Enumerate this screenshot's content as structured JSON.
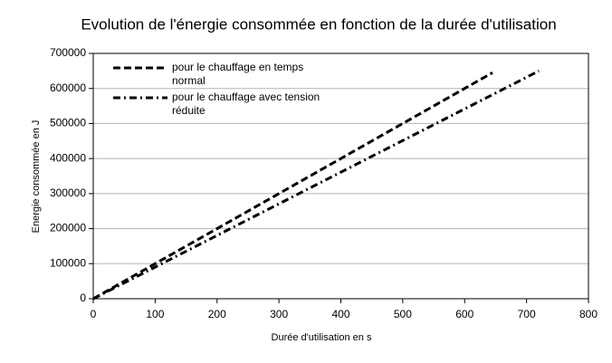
{
  "chart_data": {
    "type": "line",
    "title": "Evolution de l'énergie consommée en fonction de la durée d'utilisation",
    "xlabel": "Durée d'utilisation en s",
    "ylabel": "Energie consommée en J",
    "series": [
      {
        "name": "pour le chauffage en temps normal",
        "color": "#000000",
        "style": "dashed",
        "x": [
          0,
          645
        ],
        "values": [
          0,
          645000
        ]
      },
      {
        "name": "pour le chauffage avec tension réduite",
        "color": "#000000",
        "style": "dashdot",
        "x": [
          0,
          720
        ],
        "values": [
          0,
          650000
        ]
      }
    ],
    "xlim": [
      0,
      800
    ],
    "xticks": [
      0,
      100,
      200,
      300,
      400,
      500,
      600,
      700,
      800
    ],
    "ylim": [
      0,
      700000
    ],
    "yticks": [
      0,
      100000,
      200000,
      300000,
      400000,
      500000,
      600000,
      700000
    ],
    "grid": true,
    "legend": "top-left"
  }
}
